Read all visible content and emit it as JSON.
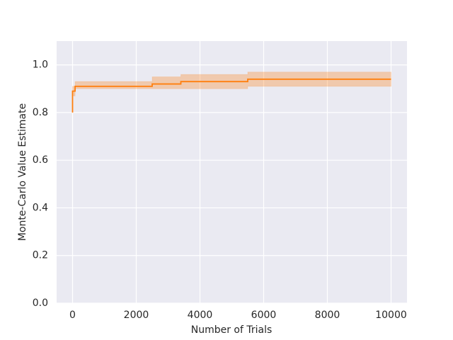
{
  "chart_data": {
    "type": "line",
    "xlabel": "Number of Trials",
    "ylabel": "Monte-Carlo Value Estimate",
    "x": [
      0,
      0,
      80,
      80,
      2500,
      2500,
      3400,
      3400,
      5500,
      5500,
      10000
    ],
    "series": [
      {
        "color": "#ff7f0e",
        "values": [
          0.8,
          0.89,
          0.89,
          0.91,
          0.91,
          0.92,
          0.92,
          0.93,
          0.93,
          0.94,
          0.94
        ],
        "lower": [
          0.8,
          0.87,
          0.87,
          0.9,
          0.9,
          0.9,
          0.9,
          0.9,
          0.9,
          0.91,
          0.91
        ],
        "upper": [
          0.8,
          0.91,
          0.91,
          0.93,
          0.93,
          0.95,
          0.95,
          0.96,
          0.96,
          0.97,
          0.97
        ]
      }
    ],
    "xlim": [
      -500,
      10500
    ],
    "ylim": [
      0,
      1.1
    ],
    "xticks": [
      0,
      2000,
      4000,
      6000,
      8000,
      10000
    ],
    "yticks": [
      {
        "value": 0,
        "label": "0.0"
      },
      0.2,
      0.4,
      0.6,
      0.8,
      {
        "value": 1,
        "label": "1.0"
      }
    ],
    "grid": true,
    "background": "#eaeaf2"
  }
}
